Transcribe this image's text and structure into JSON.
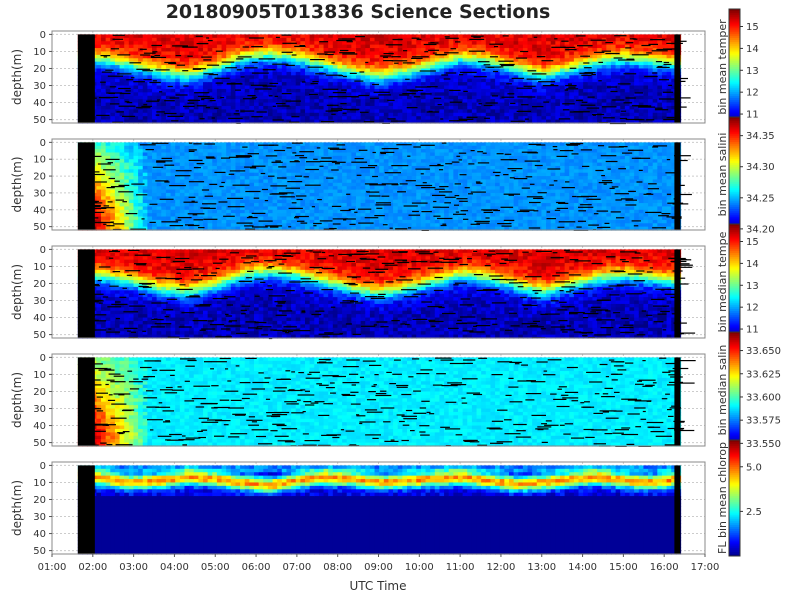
{
  "title": "20180905T013836 Science Sections",
  "chart_data": [
    {
      "type": "heatmap",
      "ylabel": "depth(m)",
      "y_ticks": [
        "0",
        "10",
        "20",
        "30",
        "40",
        "50"
      ],
      "ylim": [
        52,
        -2
      ],
      "colorbar": {
        "label": "bin mean temper",
        "ticks": [
          "11",
          "12",
          "13",
          "14",
          "15"
        ],
        "range": [
          10.5,
          15.8
        ]
      },
      "field": {
        "surface": 15.3,
        "deep": 10.8,
        "thermocline_depth": [
          14,
          15,
          18,
          22,
          24,
          20,
          14,
          12,
          14,
          18,
          22,
          25,
          22,
          18,
          14,
          16,
          20,
          24,
          20,
          16,
          14,
          16,
          18
        ],
        "thermocline_width": 16
      }
    },
    {
      "type": "heatmap",
      "ylabel": "depth(m)",
      "y_ticks": [
        "0",
        "10",
        "20",
        "30",
        "40",
        "50"
      ],
      "ylim": [
        52,
        -2
      ],
      "colorbar": {
        "label": "bin mean salini",
        "ticks": [
          "34.20",
          "34.25",
          "34.30",
          "34.35"
        ],
        "range": [
          34.195,
          34.38
        ]
      },
      "field": {
        "background": 34.245,
        "anomaly_peak": 34.375,
        "anomaly_end_time": "03:20"
      }
    },
    {
      "type": "heatmap",
      "ylabel": "depth(m)",
      "y_ticks": [
        "0",
        "10",
        "20",
        "30",
        "40",
        "50"
      ],
      "ylim": [
        52,
        -2
      ],
      "colorbar": {
        "label": "bin median tempe",
        "ticks": [
          "11",
          "12",
          "13",
          "14",
          "15"
        ],
        "range": [
          10.5,
          15.8
        ]
      },
      "field": {
        "surface": 15.3,
        "deep": 10.8,
        "thermocline_depth": [
          14,
          16,
          19,
          23,
          25,
          21,
          15,
          13,
          15,
          19,
          23,
          26,
          23,
          19,
          15,
          17,
          21,
          25,
          21,
          17,
          15,
          17,
          19
        ],
        "thermocline_width": 16
      }
    },
    {
      "type": "heatmap",
      "ylabel": "depth(m)",
      "y_ticks": [
        "0",
        "10",
        "20",
        "30",
        "40",
        "50"
      ],
      "ylim": [
        52,
        -2
      ],
      "colorbar": {
        "label": "bin median salin",
        "ticks": [
          "33.550",
          "33.575",
          "33.600",
          "33.625",
          "33.650"
        ],
        "range": [
          33.545,
          33.67
        ]
      },
      "field": {
        "background": 33.59,
        "anomaly_peak": 33.665,
        "anomaly_end_time": "03:20"
      }
    },
    {
      "type": "heatmap",
      "ylabel": "depth(m)",
      "y_ticks": [
        "0",
        "10",
        "20",
        "30",
        "40",
        "50"
      ],
      "ylim": [
        52,
        -2
      ],
      "colorbar": {
        "label": "FL bin mean chlorop",
        "ticks": [
          "2.5",
          "5.0"
        ],
        "range": [
          0,
          6.5
        ]
      },
      "field": {
        "background": 0.3,
        "max_depth": [
          6,
          8,
          10,
          9,
          7,
          8,
          10,
          12,
          9,
          7,
          8,
          10,
          9,
          8,
          7,
          9,
          11,
          10,
          8,
          7,
          9,
          10,
          8
        ]
      }
    }
  ],
  "x_axis": {
    "label": "UTC Time",
    "ticks": [
      "01:00",
      "02:00",
      "03:00",
      "04:00",
      "05:00",
      "06:00",
      "07:00",
      "08:00",
      "09:00",
      "10:00",
      "11:00",
      "12:00",
      "13:00",
      "14:00",
      "15:00",
      "16:00",
      "17:00"
    ],
    "data_start": "01:38",
    "data_end": "16:24"
  },
  "colors": {
    "no_data": "#000000",
    "grid": "#cccccc",
    "background": "#ffffff"
  }
}
